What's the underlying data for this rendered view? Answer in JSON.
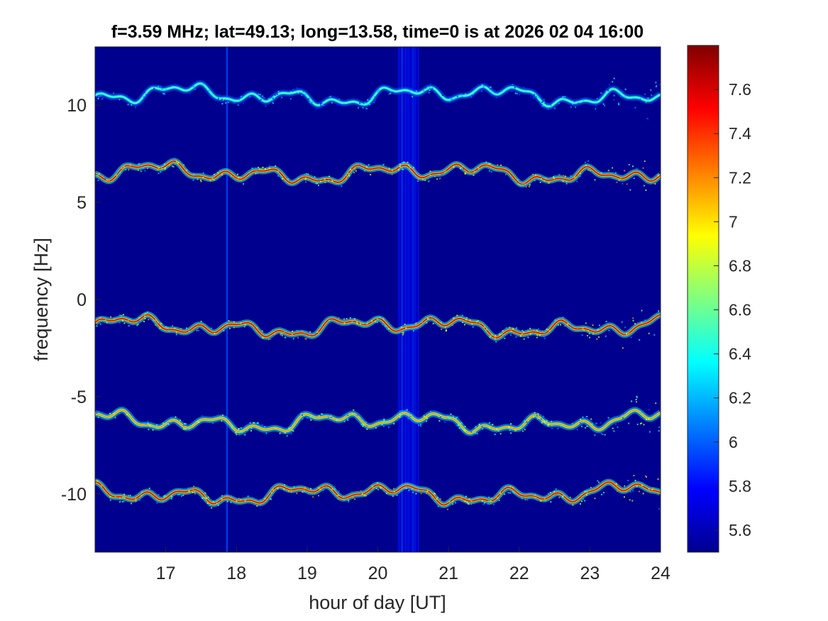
{
  "chart_data": {
    "type": "heatmap",
    "title": "f=3.59 MHz;  lat=49.13; long=13.58, time=0 is at 2026 02 04 16:00",
    "xlabel": "hour of day [UT]",
    "ylabel": "frequency [Hz]",
    "xlim": [
      16,
      24
    ],
    "ylim": [
      -13,
      13
    ],
    "xticks": [
      17,
      18,
      19,
      20,
      21,
      22,
      23,
      24
    ],
    "xtick_labels": [
      "17",
      "18",
      "19",
      "20",
      "21",
      "22",
      "23",
      "24"
    ],
    "yticks": [
      10,
      5,
      0,
      -5,
      -10
    ],
    "ytick_labels": [
      "10",
      "5",
      "0",
      "-5",
      "-10"
    ],
    "colormap": "jet",
    "colorbar": {
      "range": [
        5.5,
        7.8
      ],
      "ticks": [
        7.6,
        7.4,
        7.2,
        7,
        6.8,
        6.6,
        6.4,
        6.2,
        6,
        5.8,
        5.6
      ],
      "tick_labels": [
        "7.6",
        "7.4",
        "7.2",
        "7",
        "6.8",
        "6.6",
        "6.4",
        "6.2",
        "6",
        "5.8",
        "5.6"
      ]
    },
    "background_value": 5.5,
    "traces": [
      {
        "nominal_freq_hz": 10.5,
        "peak_value": 6.6
      },
      {
        "nominal_freq_hz": 6.5,
        "peak_value": 7.6
      },
      {
        "nominal_freq_hz": -1.4,
        "peak_value": 7.6
      },
      {
        "nominal_freq_hz": -6.3,
        "peak_value": 7.2
      },
      {
        "nominal_freq_hz": -10.0,
        "peak_value": 7.6
      }
    ],
    "interference": [
      {
        "x_start": 20.28,
        "x_end": 20.58,
        "value": 6.0
      },
      {
        "x_start": 17.85,
        "x_end": 17.88,
        "value": 6.2
      }
    ],
    "grid": false
  }
}
